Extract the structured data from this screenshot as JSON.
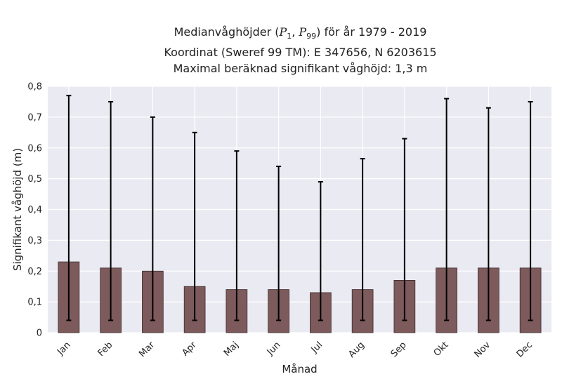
{
  "chart_data": {
    "type": "bar",
    "title": {
      "line1_prefix": "Medianvåghöjder (",
      "p1_symbol": "P",
      "p1_sub": "1",
      "separator": ", ",
      "p99_symbol": "P",
      "p99_sub": "99",
      "line1_suffix": ") för år 1979 - 2019",
      "line2": "Koordinat (Sweref 99 TM): E 347656, N 6203615",
      "line3": "Maximal beräknad signifikant våghöjd: 1,3 m"
    },
    "xlabel": "Månad",
    "ylabel": "Signifikant våghöjd (m)",
    "categories": [
      "Jan",
      "Feb",
      "Mar",
      "Apr",
      "Maj",
      "Jun",
      "Jul",
      "Aug",
      "Sep",
      "Okt",
      "Nov",
      "Dec"
    ],
    "values": [
      0.23,
      0.21,
      0.2,
      0.15,
      0.14,
      0.14,
      0.13,
      0.14,
      0.17,
      0.21,
      0.21,
      0.21
    ],
    "error_low": [
      0.04,
      0.04,
      0.04,
      0.04,
      0.04,
      0.04,
      0.04,
      0.04,
      0.04,
      0.04,
      0.04,
      0.04
    ],
    "error_high": [
      0.77,
      0.75,
      0.7,
      0.65,
      0.59,
      0.54,
      0.49,
      0.565,
      0.63,
      0.76,
      0.73,
      0.75
    ],
    "ylim": [
      0,
      0.8
    ],
    "yticks": [
      0,
      0.1,
      0.2,
      0.3,
      0.4,
      0.5,
      0.6,
      0.7,
      0.8
    ],
    "ytick_labels": [
      "0",
      "0,1",
      "0,2",
      "0,3",
      "0,4",
      "0,5",
      "0,6",
      "0,7",
      "0,8"
    ],
    "grid": true,
    "colors": {
      "bar_fill": "#7d5a5b",
      "bar_edge": "#3b2a2b",
      "error_bar": "#000000",
      "plot_bg": "#eaeaf2",
      "grid": "#ffffff"
    }
  }
}
